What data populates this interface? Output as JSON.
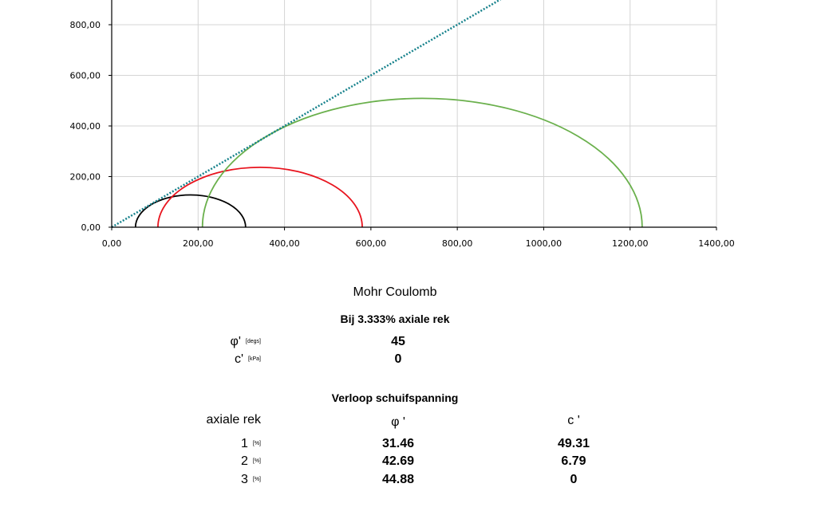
{
  "chart_data": {
    "type": "line",
    "title": "",
    "xlabel": "",
    "ylabel": "",
    "xlim": [
      0,
      1400
    ],
    "ylim": [
      0,
      800
    ],
    "x_ticks": [
      "0,00",
      "200,00",
      "400,00",
      "600,00",
      "800,00",
      "1000,00",
      "1200,00",
      "1400,00"
    ],
    "y_ticks": [
      "0,00",
      "200,00",
      "400,00",
      "600,00",
      "800,00"
    ],
    "grid": true,
    "series": [
      {
        "kind": "mohr_circle",
        "color": "#000000",
        "sigma3": 55,
        "sigma1": 310
      },
      {
        "kind": "mohr_circle",
        "color": "#e8141e",
        "sigma3": 107,
        "sigma1": 580
      },
      {
        "kind": "mohr_circle",
        "color": "#6ab04c",
        "sigma3": 210,
        "sigma1": 1228
      },
      {
        "kind": "envelope",
        "color": "#17828c",
        "style": "dotted",
        "x": [
          0,
          900
        ],
        "y": [
          0,
          900
        ]
      }
    ]
  },
  "results": {
    "title": "Mohr Coulomb",
    "subtitle": "Bij 3.333% axiale rek",
    "phi_label": "φ'",
    "phi_unit": "[degs]",
    "phi_value": "45",
    "c_label": "c'",
    "c_unit": "[kPa]",
    "c_value": "0"
  },
  "progression": {
    "title": "Verloop schuifspanning",
    "col_label": "axiale rek",
    "col_phi": "φ '",
    "col_c": "c '",
    "rows": [
      {
        "rek": "1",
        "unit": "[%]",
        "phi": "31.46",
        "c": "49.31"
      },
      {
        "rek": "2",
        "unit": "[%]",
        "phi": "42.69",
        "c": "6.79"
      },
      {
        "rek": "3",
        "unit": "[%]",
        "phi": "44.88",
        "c": "0"
      }
    ]
  }
}
